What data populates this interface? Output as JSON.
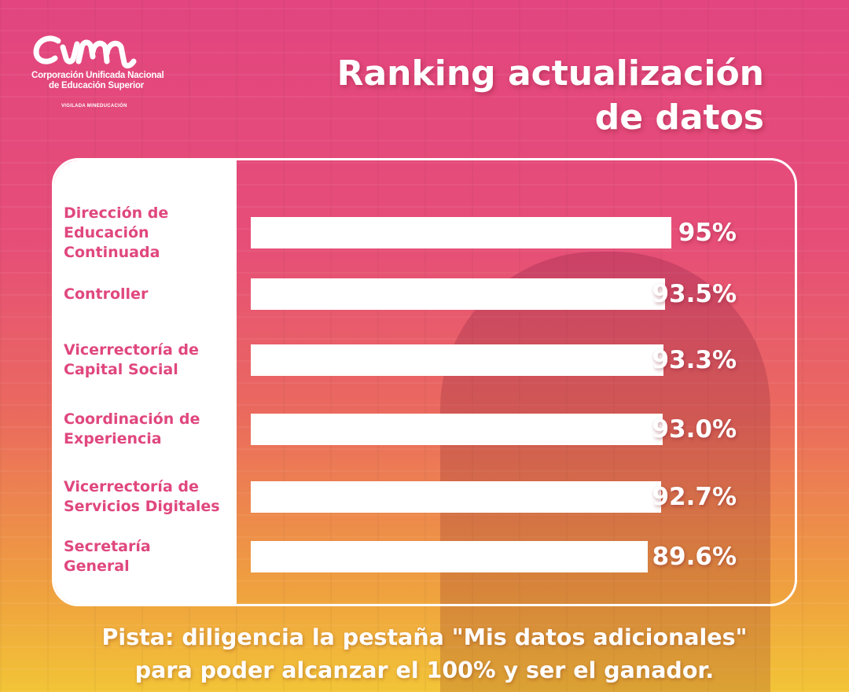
{
  "logo": {
    "line1": "Corporación Unificada Nacional",
    "line2": "de Educación Superior",
    "tagline": "VIGILADA MINEDUCACIÓN",
    "mark": "cun-logo-mark"
  },
  "title": {
    "line1": "Ranking actualización",
    "line2": "de datos"
  },
  "chart_data": {
    "type": "bar",
    "orientation": "horizontal",
    "categories": [
      "Dirección de Educación Continuada",
      "Controller",
      "Vicerrectoría de Capital Social",
      "Coordinación de Experiencia",
      "Vicerrectoría de Servicios Digitales",
      "Secretaría General"
    ],
    "category_lines": [
      [
        "Dirección de",
        "Educación",
        "Continuada"
      ],
      [
        "Controller"
      ],
      [
        "Vicerrectoría de",
        "Capital Social"
      ],
      [
        "Coordinación de",
        "Experiencia"
      ],
      [
        "Vicerrectoría de",
        "Servicios Digitales"
      ],
      [
        "Secretaría",
        "General"
      ]
    ],
    "values": [
      95,
      93.5,
      93.3,
      93.0,
      92.7,
      89.6
    ],
    "value_labels": [
      "95%",
      "93.5%",
      "93.3%",
      "93.0%",
      "92.7%",
      "89.6%"
    ],
    "bar_color": "#ffffff",
    "label_color": "#e0477e"
  },
  "footer": {
    "line1": "Pista: diligencia la pestaña \"Mis datos adicionales\"",
    "line2": "para poder alcanzar el 100% y ser el ganador."
  }
}
